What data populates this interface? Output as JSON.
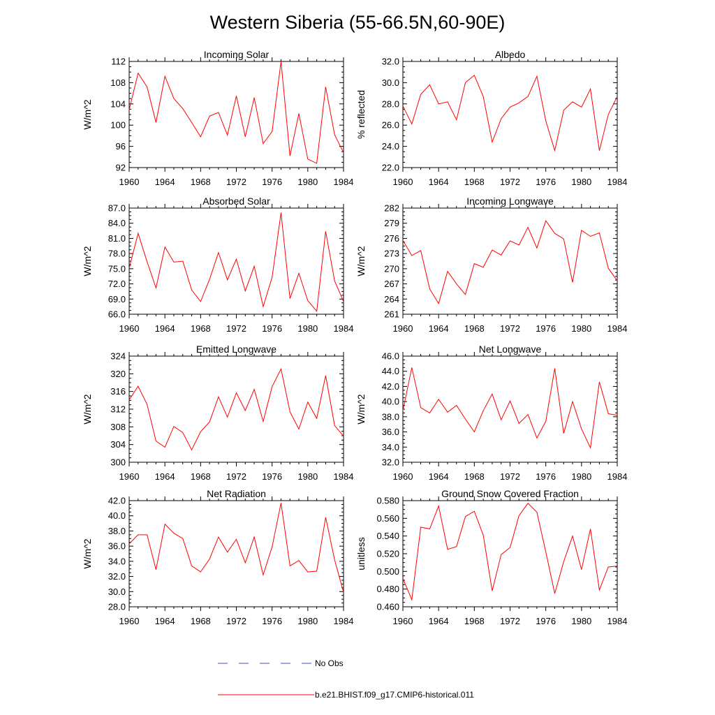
{
  "title": "Western Siberia (55-66.5N,60-90E)",
  "colors": {
    "model": "#ff0000",
    "obs": "#3d4fd6",
    "axis": "#000000"
  },
  "legend": {
    "obs_label": "No Obs",
    "model_label": "b.e21.BHIST.f09_g17.CMIP6-historical.011"
  },
  "chart_data": [
    {
      "type": "line",
      "title": "Incoming Solar",
      "ylabel": "W/m^2",
      "xlim": [
        1960,
        1984
      ],
      "ylim": [
        92,
        112
      ],
      "yticks": [
        "92",
        "96",
        "100",
        "104",
        "108",
        "112"
      ],
      "xticks": [
        "1960",
        "1964",
        "1968",
        "1972",
        "1976",
        "1980",
        "1984"
      ],
      "x": [
        1960,
        1961,
        1962,
        1963,
        1964,
        1965,
        1966,
        1967,
        1968,
        1969,
        1970,
        1971,
        1972,
        1973,
        1974,
        1975,
        1976,
        1977,
        1978,
        1979,
        1980,
        1981,
        1982,
        1983,
        1984
      ],
      "series": [
        {
          "values": [
            102.9,
            109.8,
            107.2,
            100.5,
            109.2,
            105.0,
            103.1,
            100.5,
            97.8,
            101.7,
            102.4,
            98.1,
            105.5,
            97.8,
            105.2,
            96.5,
            98.8,
            112.0,
            94.2,
            102.2,
            93.6,
            92.8,
            107.2,
            98.2,
            94.8
          ]
        }
      ]
    },
    {
      "type": "line",
      "title": "Albedo",
      "ylabel": "% reflected",
      "xlim": [
        1960,
        1984
      ],
      "ylim": [
        22.0,
        32.0
      ],
      "yticks": [
        "22.0",
        "24.0",
        "26.0",
        "28.0",
        "30.0",
        "32.0"
      ],
      "xticks": [
        "1960",
        "1964",
        "1968",
        "1972",
        "1976",
        "1980",
        "1984"
      ],
      "x": [
        1960,
        1961,
        1962,
        1963,
        1964,
        1965,
        1966,
        1967,
        1968,
        1969,
        1970,
        1971,
        1972,
        1973,
        1974,
        1975,
        1976,
        1977,
        1978,
        1979,
        1980,
        1981,
        1982,
        1983,
        1984
      ],
      "series": [
        {
          "values": [
            27.8,
            26.1,
            28.9,
            29.8,
            28.0,
            28.2,
            26.5,
            30.0,
            30.7,
            28.7,
            24.4,
            26.6,
            27.7,
            28.1,
            28.7,
            30.6,
            26.4,
            23.6,
            27.4,
            28.2,
            27.7,
            29.4,
            23.6,
            27.0,
            28.7
          ]
        }
      ]
    },
    {
      "type": "line",
      "title": "Absorbed Solar",
      "ylabel": "W/m^2",
      "xlim": [
        1960,
        1984
      ],
      "ylim": [
        66.0,
        87.0
      ],
      "yticks": [
        "66.0",
        "69.0",
        "72.0",
        "75.0",
        "78.0",
        "81.0",
        "84.0",
        "87.0"
      ],
      "xticks": [
        "1960",
        "1964",
        "1968",
        "1972",
        "1976",
        "1980",
        "1984"
      ],
      "x": [
        1960,
        1961,
        1962,
        1963,
        1964,
        1965,
        1966,
        1967,
        1968,
        1969,
        1970,
        1971,
        1972,
        1973,
        1974,
        1975,
        1976,
        1977,
        1978,
        1979,
        1980,
        1981,
        1982,
        1983,
        1984
      ],
      "series": [
        {
          "values": [
            75.1,
            82.0,
            76.4,
            71.2,
            79.3,
            76.3,
            76.5,
            70.8,
            68.5,
            72.9,
            78.2,
            72.8,
            76.9,
            70.6,
            75.5,
            67.5,
            73.3,
            86.1,
            69.1,
            74.1,
            68.7,
            66.6,
            82.4,
            72.6,
            68.5
          ]
        }
      ]
    },
    {
      "type": "line",
      "title": "Incoming Longwave",
      "ylabel": "W/m^2",
      "xlim": [
        1960,
        1984
      ],
      "ylim": [
        261,
        282
      ],
      "yticks": [
        "261",
        "264",
        "267",
        "270",
        "273",
        "276",
        "279",
        "282"
      ],
      "xticks": [
        "1960",
        "1964",
        "1968",
        "1972",
        "1976",
        "1980",
        "1984"
      ],
      "x": [
        1960,
        1961,
        1962,
        1963,
        1964,
        1965,
        1966,
        1967,
        1968,
        1969,
        1970,
        1971,
        1972,
        1973,
        1974,
        1975,
        1976,
        1977,
        1978,
        1979,
        1980,
        1981,
        1982,
        1983,
        1984
      ],
      "series": [
        {
          "values": [
            275.6,
            272.6,
            273.6,
            266.0,
            263.1,
            269.5,
            267.0,
            264.9,
            271.0,
            270.3,
            273.7,
            272.7,
            275.5,
            274.7,
            278.2,
            274.1,
            279.5,
            277.0,
            275.9,
            267.3,
            277.6,
            276.4,
            277.1,
            270.1,
            267.6
          ]
        }
      ]
    },
    {
      "type": "line",
      "title": "Emitted Longwave",
      "ylabel": "W/m^2",
      "xlim": [
        1960,
        1984
      ],
      "ylim": [
        300,
        324
      ],
      "yticks": [
        "300",
        "304",
        "308",
        "312",
        "316",
        "320",
        "324"
      ],
      "xticks": [
        "1960",
        "1964",
        "1968",
        "1972",
        "1976",
        "1980",
        "1984"
      ],
      "x": [
        1960,
        1961,
        1962,
        1963,
        1964,
        1965,
        1966,
        1967,
        1968,
        1969,
        1970,
        1971,
        1972,
        1973,
        1974,
        1975,
        1976,
        1977,
        1978,
        1979,
        1980,
        1981,
        1982,
        1983,
        1984
      ],
      "series": [
        {
          "values": [
            314.1,
            317.2,
            313.1,
            304.8,
            303.4,
            308.1,
            306.7,
            302.8,
            306.9,
            309.1,
            314.8,
            310.2,
            315.7,
            311.7,
            316.5,
            309.2,
            317.1,
            321.1,
            311.4,
            307.5,
            313.6,
            309.9,
            319.6,
            308.3,
            305.9
          ]
        }
      ]
    },
    {
      "type": "line",
      "title": "Net Longwave",
      "ylabel": "W/m^2",
      "xlim": [
        1960,
        1984
      ],
      "ylim": [
        32.0,
        46.0
      ],
      "yticks": [
        "32.0",
        "34.0",
        "36.0",
        "38.0",
        "40.0",
        "42.0",
        "44.0",
        "46.0"
      ],
      "xticks": [
        "1960",
        "1964",
        "1968",
        "1972",
        "1976",
        "1980",
        "1984"
      ],
      "x": [
        1960,
        1961,
        1962,
        1963,
        1964,
        1965,
        1966,
        1967,
        1968,
        1969,
        1970,
        1971,
        1972,
        1973,
        1974,
        1975,
        1976,
        1977,
        1978,
        1979,
        1980,
        1981,
        1982,
        1983,
        1984
      ],
      "series": [
        {
          "values": [
            38.8,
            44.5,
            39.2,
            38.5,
            40.3,
            38.6,
            39.5,
            37.7,
            36.0,
            38.8,
            41.0,
            37.6,
            40.1,
            37.1,
            38.3,
            35.2,
            37.4,
            44.4,
            35.8,
            40.0,
            36.4,
            33.9,
            42.6,
            38.4,
            38.2
          ]
        }
      ]
    },
    {
      "type": "line",
      "title": "Net Radiation",
      "ylabel": "W/m^2",
      "xlim": [
        1960,
        1984
      ],
      "ylim": [
        28.0,
        42.0
      ],
      "yticks": [
        "28.0",
        "30.0",
        "32.0",
        "34.0",
        "36.0",
        "38.0",
        "40.0",
        "42.0"
      ],
      "xticks": [
        "1960",
        "1964",
        "1968",
        "1972",
        "1976",
        "1980",
        "1984"
      ],
      "x": [
        1960,
        1961,
        1962,
        1963,
        1964,
        1965,
        1966,
        1967,
        1968,
        1969,
        1970,
        1971,
        1972,
        1973,
        1974,
        1975,
        1976,
        1977,
        1978,
        1979,
        1980,
        1981,
        1982,
        1983,
        1984
      ],
      "series": [
        {
          "values": [
            36.3,
            37.5,
            37.5,
            32.9,
            38.9,
            37.7,
            37.0,
            33.4,
            32.6,
            34.3,
            37.2,
            35.2,
            36.9,
            33.8,
            37.2,
            32.2,
            35.9,
            41.7,
            33.4,
            34.1,
            32.6,
            32.7,
            39.8,
            34.2,
            29.9
          ]
        }
      ]
    },
    {
      "type": "line",
      "title": "Ground Snow Covered Fraction",
      "ylabel": "unitless",
      "xlim": [
        1960,
        1984
      ],
      "ylim": [
        0.46,
        0.58
      ],
      "yticks": [
        "0.460",
        "0.480",
        "0.500",
        "0.520",
        "0.540",
        "0.560",
        "0.580"
      ],
      "xticks": [
        "1960",
        "1964",
        "1968",
        "1972",
        "1976",
        "1980",
        "1984"
      ],
      "x": [
        1960,
        1961,
        1962,
        1963,
        1964,
        1965,
        1966,
        1967,
        1968,
        1969,
        1970,
        1971,
        1972,
        1973,
        1974,
        1975,
        1976,
        1977,
        1978,
        1979,
        1980,
        1981,
        1982,
        1983,
        1984
      ],
      "series": [
        {
          "values": [
            0.492,
            0.468,
            0.55,
            0.548,
            0.574,
            0.525,
            0.528,
            0.562,
            0.568,
            0.541,
            0.478,
            0.519,
            0.527,
            0.563,
            0.577,
            0.567,
            0.522,
            0.475,
            0.511,
            0.54,
            0.502,
            0.548,
            0.479,
            0.505,
            0.506
          ]
        }
      ]
    }
  ]
}
